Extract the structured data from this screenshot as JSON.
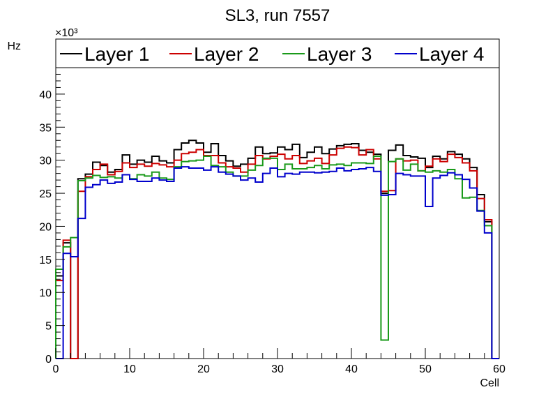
{
  "chart_data": {
    "type": "step-histogram",
    "title": "SL3, run 7557",
    "xlabel": "Cell",
    "ylabel": "Hz",
    "y_multiplier": "×10³",
    "xlim": [
      0,
      60
    ],
    "ylim": [
      0,
      44
    ],
    "y_units_note": "values in thousands of Hz",
    "x_ticks": [
      0,
      10,
      20,
      30,
      40,
      50,
      60
    ],
    "y_ticks": [
      0,
      5,
      10,
      15,
      20,
      25,
      30,
      35,
      40
    ],
    "legend_placement": "top",
    "series": [
      {
        "name": "Layer 1",
        "color": "#000000",
        "values": [
          12.5,
          17.5,
          0,
          27.2,
          27.9,
          29.7,
          29.2,
          28.2,
          28.6,
          30.8,
          29.4,
          30.0,
          29.7,
          30.6,
          29.9,
          29.6,
          31.6,
          32.6,
          33.0,
          32.6,
          31.2,
          32.5,
          30.7,
          29.9,
          29.1,
          29.4,
          30.3,
          32.0,
          31.0,
          31.1,
          32.0,
          31.6,
          32.4,
          30.4,
          31.2,
          32.0,
          31.0,
          31.7,
          32.2,
          32.4,
          32.5,
          31.5,
          31.2,
          30.9,
          25.0,
          31.5,
          32.3,
          30.7,
          30.5,
          30.3,
          28.9,
          30.6,
          30.2,
          31.3,
          30.9,
          30.2,
          28.9,
          24.8,
          20.7,
          0
        ]
      },
      {
        "name": "Layer 2",
        "color": "#cc0000",
        "values": [
          11.8,
          17.9,
          0,
          25.3,
          27.5,
          28.6,
          29.4,
          27.8,
          28.3,
          29.6,
          28.9,
          29.4,
          29.1,
          29.5,
          29.3,
          29.0,
          30.0,
          31.0,
          31.2,
          31.6,
          30.7,
          30.7,
          29.6,
          29.0,
          28.8,
          28.2,
          29.4,
          30.7,
          30.2,
          30.6,
          30.9,
          30.2,
          30.7,
          29.5,
          29.9,
          30.3,
          29.5,
          30.8,
          31.8,
          32.0,
          31.9,
          30.8,
          31.6,
          30.2,
          25.3,
          25.4,
          30.2,
          29.9,
          30.0,
          28.4,
          29.1,
          30.2,
          29.8,
          30.9,
          30.4,
          29.6,
          28.4,
          24.2,
          21.0,
          0
        ]
      },
      {
        "name": "Layer 3",
        "color": "#1a9a1a",
        "values": [
          13.5,
          16.9,
          18.3,
          26.9,
          27.3,
          27.7,
          27.4,
          27.5,
          27.3,
          27.8,
          27.2,
          27.8,
          27.6,
          28.2,
          27.3,
          27.1,
          29.0,
          29.8,
          29.9,
          30.0,
          30.6,
          29.2,
          29.0,
          28.2,
          27.6,
          27.6,
          28.5,
          29.2,
          30.3,
          30.3,
          28.6,
          29.4,
          28.7,
          28.7,
          28.9,
          29.2,
          28.7,
          29.3,
          29.4,
          29.2,
          29.6,
          29.6,
          29.5,
          30.6,
          2.8,
          29.8,
          30.2,
          28.5,
          29.4,
          28.4,
          28.2,
          28.4,
          28.2,
          28.6,
          27.2,
          24.3,
          24.4,
          22.4,
          20.1,
          0
        ]
      },
      {
        "name": "Layer 4",
        "color": "#0000cc",
        "values": [
          0,
          15.9,
          15.4,
          21.2,
          25.9,
          26.3,
          27.0,
          26.5,
          26.7,
          27.8,
          27.1,
          26.8,
          26.8,
          27.3,
          27.0,
          26.8,
          28.8,
          29.0,
          28.8,
          28.8,
          28.5,
          29.0,
          28.2,
          27.9,
          27.6,
          27.0,
          27.3,
          26.7,
          28.0,
          28.8,
          27.5,
          28.0,
          27.9,
          28.2,
          28.2,
          28.1,
          28.2,
          28.3,
          28.8,
          28.4,
          28.6,
          28.7,
          28.9,
          28.3,
          24.7,
          24.8,
          28.0,
          27.8,
          27.6,
          27.6,
          23.0,
          27.3,
          27.7,
          28.1,
          27.8,
          27.1,
          25.8,
          22.3,
          19.0,
          0
        ]
      }
    ]
  }
}
